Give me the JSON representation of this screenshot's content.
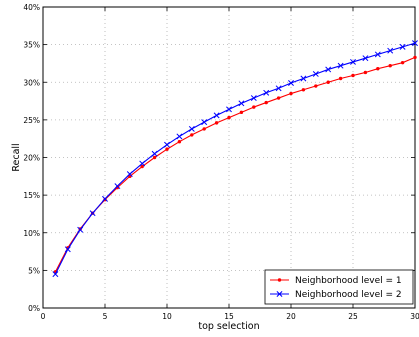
{
  "chart_data": {
    "type": "line",
    "xlabel": "top selection",
    "ylabel": "Recall",
    "xlim": [
      0,
      30
    ],
    "ylim": [
      0,
      0.4
    ],
    "grid": true,
    "legend_position": "bottom-right",
    "x_ticks": [
      {
        "value": 0,
        "label": "0"
      },
      {
        "value": 5,
        "label": "5"
      },
      {
        "value": 10,
        "label": "10"
      },
      {
        "value": 15,
        "label": "15"
      },
      {
        "value": 20,
        "label": "20"
      },
      {
        "value": 25,
        "label": "25"
      },
      {
        "value": 30,
        "label": "30"
      }
    ],
    "y_ticks": [
      {
        "value": 0.0,
        "label": "0%"
      },
      {
        "value": 0.05,
        "label": "5%"
      },
      {
        "value": 0.1,
        "label": "10%"
      },
      {
        "value": 0.15,
        "label": "15%"
      },
      {
        "value": 0.2,
        "label": "20%"
      },
      {
        "value": 0.25,
        "label": "25%"
      },
      {
        "value": 0.3,
        "label": "30%"
      },
      {
        "value": 0.35,
        "label": "35%"
      },
      {
        "value": 0.4,
        "label": "40%"
      }
    ],
    "x": [
      1,
      2,
      3,
      4,
      5,
      6,
      7,
      8,
      9,
      10,
      11,
      12,
      13,
      14,
      15,
      16,
      17,
      18,
      19,
      20,
      21,
      22,
      23,
      24,
      25,
      26,
      27,
      28,
      29,
      30
    ],
    "series": [
      {
        "name": "Neighborhood level = 1",
        "color": "#ff0000",
        "marker": "point",
        "values": [
          0.048,
          0.08,
          0.105,
          0.126,
          0.144,
          0.16,
          0.175,
          0.188,
          0.2,
          0.211,
          0.221,
          0.23,
          0.238,
          0.246,
          0.253,
          0.26,
          0.267,
          0.273,
          0.279,
          0.285,
          0.29,
          0.295,
          0.3,
          0.305,
          0.309,
          0.313,
          0.318,
          0.322,
          0.326,
          0.333
        ]
      },
      {
        "name": "Neighborhood level = 2",
        "color": "#0000ff",
        "marker": "x",
        "values": [
          0.045,
          0.078,
          0.104,
          0.126,
          0.145,
          0.162,
          0.178,
          0.192,
          0.205,
          0.217,
          0.228,
          0.238,
          0.247,
          0.256,
          0.264,
          0.272,
          0.279,
          0.286,
          0.292,
          0.299,
          0.305,
          0.311,
          0.317,
          0.322,
          0.327,
          0.332,
          0.337,
          0.342,
          0.347,
          0.352
        ]
      }
    ]
  }
}
